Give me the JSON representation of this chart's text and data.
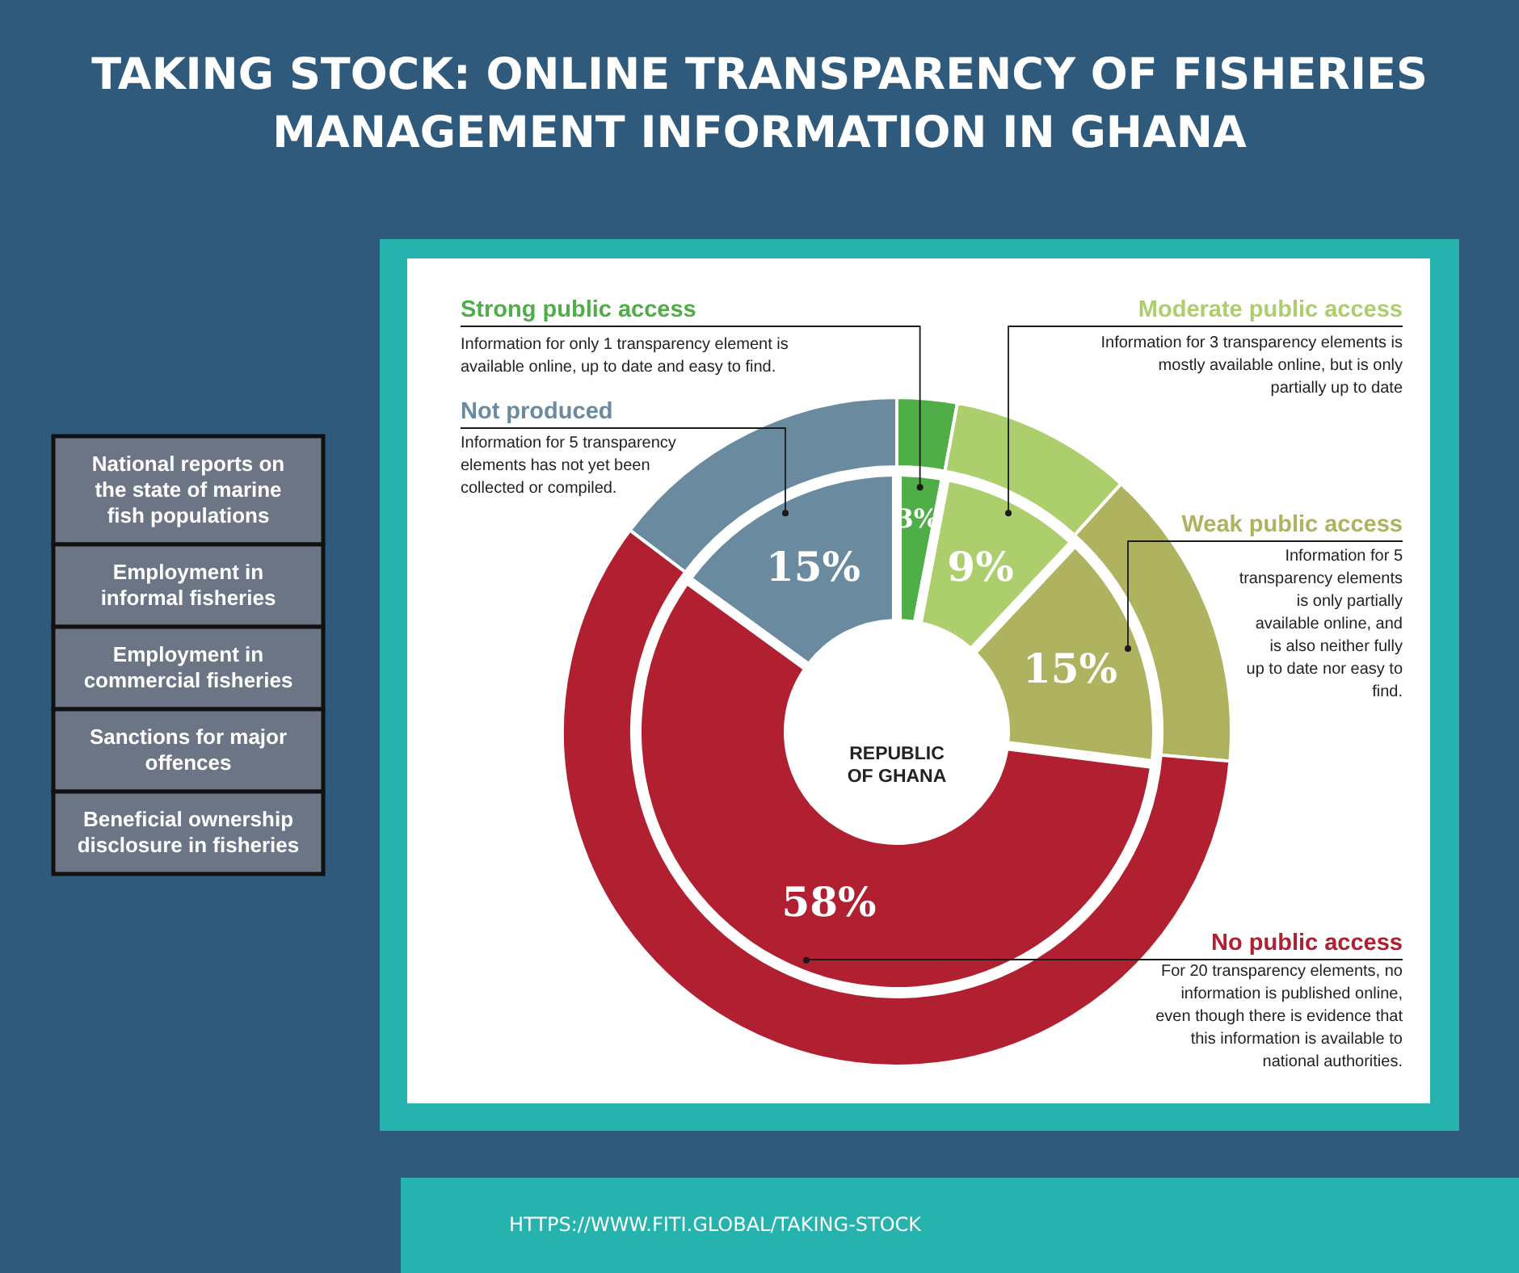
{
  "chart_data": {
    "type": "donut",
    "title": "TAKING STOCK: ONLINE TRANSPARENCY OF FISHERIES MANAGEMENT INFORMATION IN GHANA",
    "categories": [
      "Strong public access",
      "Moderate public access",
      "Weak public access",
      "No public access",
      "Not produced"
    ],
    "colors": [
      "#4fae48",
      "#adce6d",
      "#afb25f",
      "#b12030",
      "#6a8aa0"
    ],
    "series": [
      {
        "values": [
          3,
          9,
          15,
          58,
          15
        ],
        "value_labels": [
          "3%",
          "9%",
          "15%",
          "58%",
          "15%"
        ]
      },
      {
        "values": [
          2.9,
          8.8,
          14.7,
          58.9,
          14.7
        ]
      }
    ],
    "annotations": [
      "Information for only 1 transparency element is available online, up to date and easy to find.",
      "Information for 3 transparency elements is mostly available online, but is only partially up to date",
      "Information for 5 transparency elements is only partially available online, and is also neither fully up to date nor easy to find.",
      "For 20 transparency elements, no information is published online, even though there is evidence that this information is available to national authorities.",
      "Information for 5 transparency elements has not yet been collected or compiled.",
      "REPUBLIC OF GHANA",
      "National reports on the state of marine fish populations",
      "Employment in informal fisheries",
      "Employment in commercial fisheries",
      "Sanctions for major offences",
      "Beneficial ownership disclosure in fisheries",
      "HTTPS://WWW.FITI.GLOBAL/TAKING-STOCK"
    ]
  }
}
